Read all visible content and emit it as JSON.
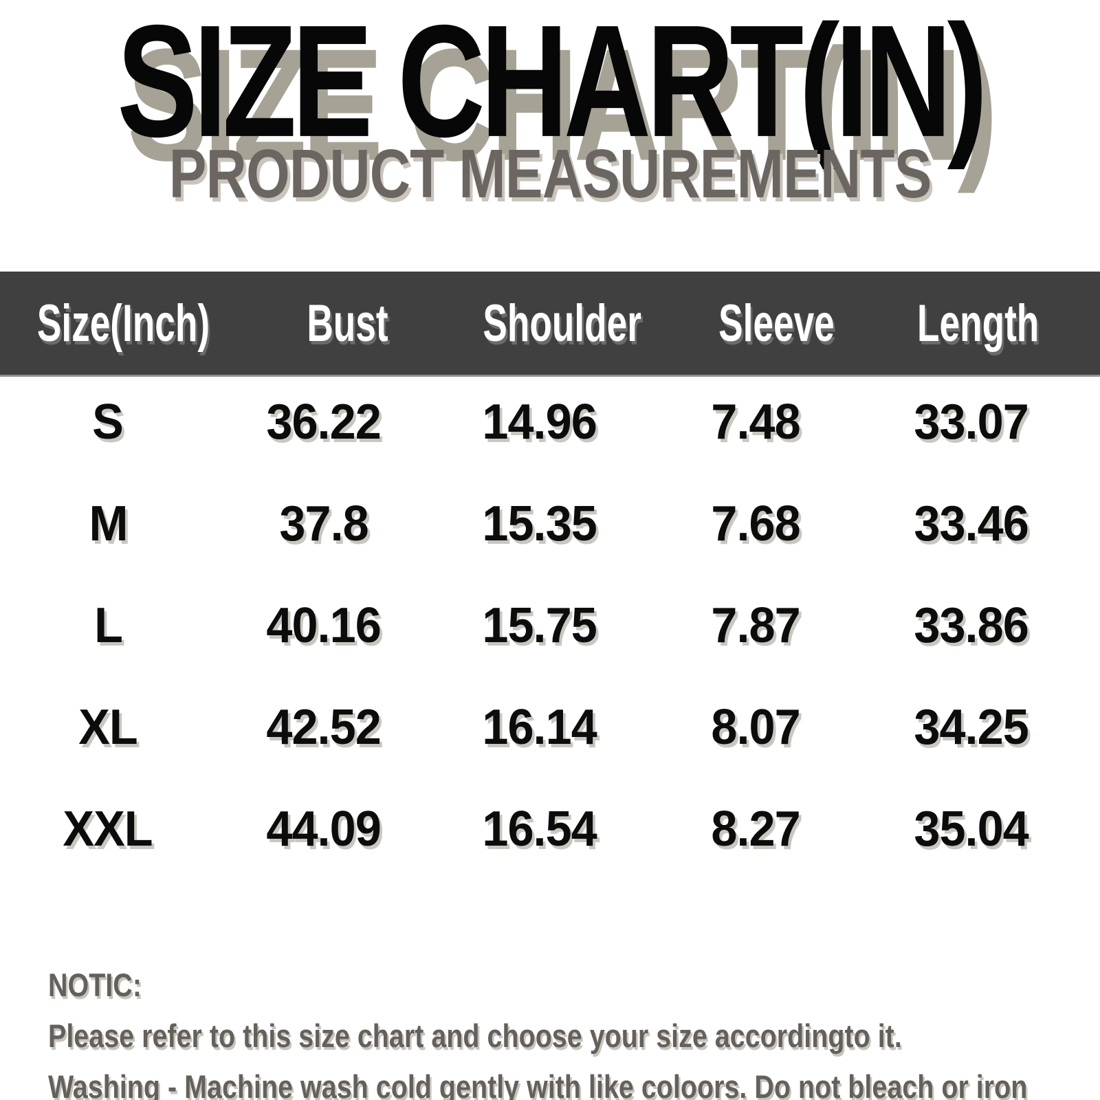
{
  "title": "SIZE CHART(IN)",
  "subtitle": "PRODUCT MEASUREMENTS",
  "chart_data": {
    "type": "table",
    "columns": [
      "Size(Inch)",
      "Bust",
      "Shoulder",
      "Sleeve",
      "Length"
    ],
    "rows": [
      [
        "S",
        "36.22",
        "14.96",
        "7.48",
        "33.07"
      ],
      [
        "M",
        "37.8",
        "15.35",
        "7.68",
        "33.46"
      ],
      [
        "L",
        "40.16",
        "15.75",
        "7.87",
        "33.86"
      ],
      [
        "XL",
        "42.52",
        "16.14",
        "8.07",
        "34.25"
      ],
      [
        "XXL",
        "44.09",
        "16.54",
        "8.27",
        "35.04"
      ]
    ],
    "title": "SIZE CHART(IN)",
    "subtitle": "PRODUCT MEASUREMENTS",
    "units": "inches"
  },
  "notice": {
    "heading": "NOTIC:",
    "line1": "Please refer to this size chart and choose your size accordingto it.",
    "line2": "Washing - Machine wash cold gently with like coloors. Do not bleach or iron"
  },
  "colors": {
    "background": "#ffffff",
    "title_text": "#070707",
    "title_shadow": "#a6a295",
    "subtitle_text": "#6b6661",
    "header_bg": "#404041",
    "header_text": "#ffffff",
    "header_bottom_line": "#8f8f8f",
    "cell_text": "#0c0c0c",
    "notice_text": "#64605c"
  }
}
